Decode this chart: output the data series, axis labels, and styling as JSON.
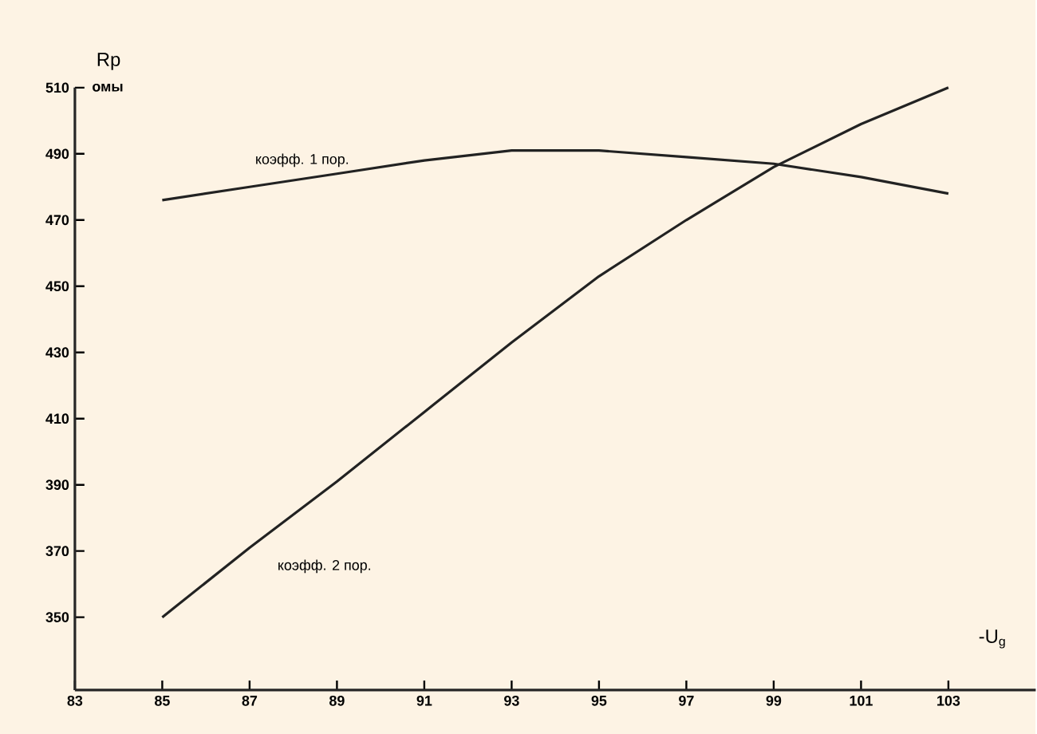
{
  "chart_data": {
    "type": "line",
    "xlabel": "-U$_{g}$",
    "ylabel": "Rp",
    "annotations": [
      "омы"
    ],
    "x": [
      85,
      87,
      89,
      91,
      93,
      95,
      97,
      99,
      101,
      103
    ],
    "series": [
      {
        "name": "коэфф. 1 пор.",
        "color": "#222222",
        "values": [
          476,
          480,
          484,
          488,
          491,
          491,
          489,
          487,
          483,
          478
        ]
      },
      {
        "name": "коэфф. 2 пор.",
        "color": "#222222",
        "values": [
          350,
          371,
          391,
          412,
          433,
          453,
          470,
          486,
          499,
          510
        ]
      }
    ],
    "xlim": [
      83,
      105
    ],
    "ylim": [
      328,
      510
    ],
    "xticks": [
      83,
      85,
      87,
      89,
      91,
      93,
      95,
      97,
      99,
      101,
      103
    ],
    "yticks": [
      350,
      370,
      390,
      410,
      430,
      450,
      470,
      490,
      510
    ],
    "grid": false,
    "legend": false,
    "marker": "none",
    "line_style": "solid"
  }
}
